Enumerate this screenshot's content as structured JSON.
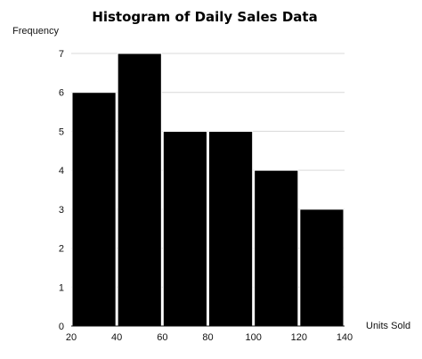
{
  "chart_data": {
    "type": "bar",
    "title": "Histogram of Daily Sales Data",
    "xlabel": "Units Sold",
    "ylabel": "Frequency",
    "bins": [
      {
        "start": 20,
        "end": 40,
        "value": 6
      },
      {
        "start": 40,
        "end": 60,
        "value": 7
      },
      {
        "start": 60,
        "end": 80,
        "value": 5
      },
      {
        "start": 80,
        "end": 100,
        "value": 5
      },
      {
        "start": 100,
        "end": 120,
        "value": 4
      },
      {
        "start": 120,
        "end": 140,
        "value": 3
      }
    ],
    "x_ticks": [
      "20",
      "40",
      "60",
      "80",
      "100",
      "120",
      "140"
    ],
    "y_ticks": [
      "0",
      "1",
      "2",
      "3",
      "4",
      "5",
      "6",
      "7"
    ],
    "xlim": [
      20,
      140
    ],
    "ylim": [
      0,
      7
    ],
    "grid": "horizontal",
    "legend": "none",
    "bar_color": "#000000",
    "bar_edge_color": "#ffffff",
    "grid_color": "#d9d9d9"
  }
}
